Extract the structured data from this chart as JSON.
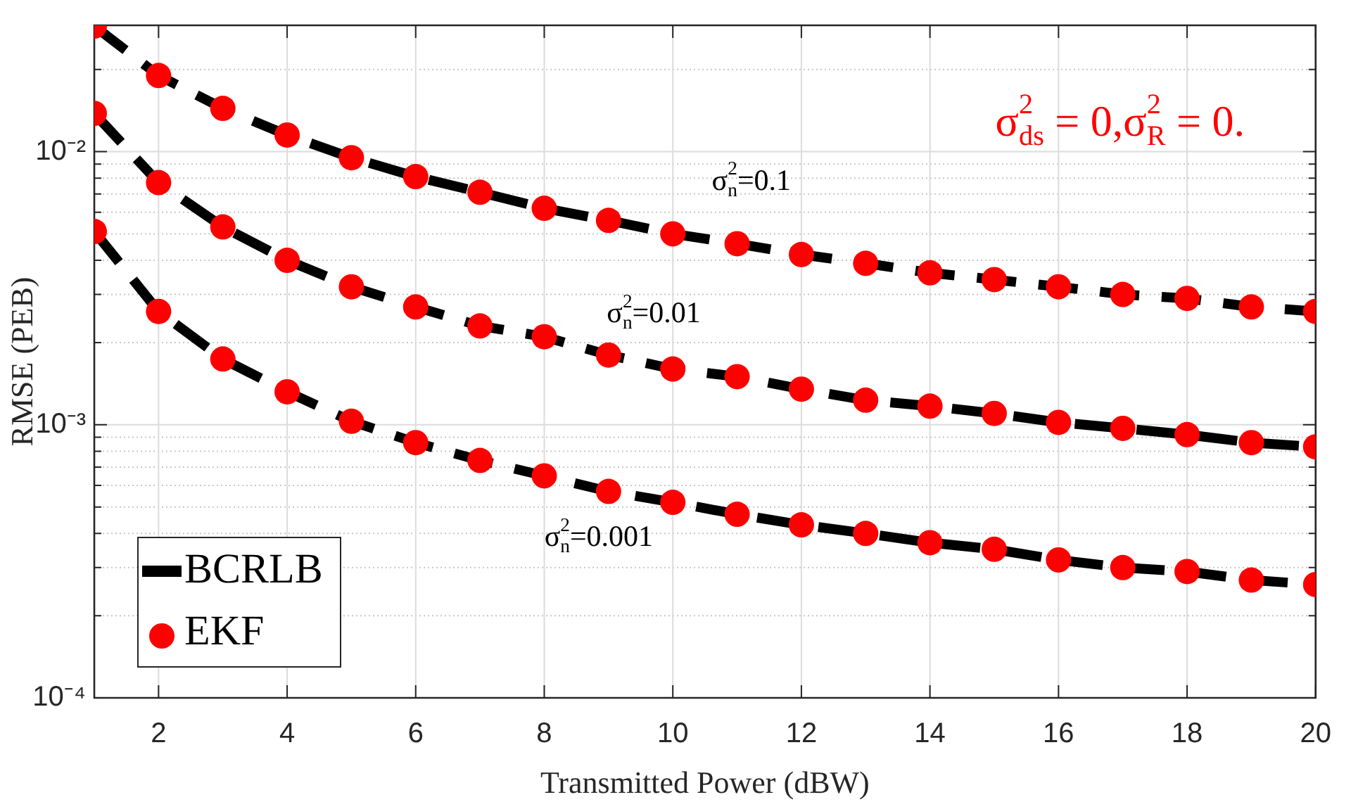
{
  "chart_data": {
    "type": "line",
    "xlabel": "Transmitted Power (dBW)",
    "ylabel": "RMSE (PEB)",
    "x": [
      1,
      2,
      3,
      4,
      5,
      6,
      7,
      8,
      9,
      10,
      11,
      12,
      13,
      14,
      15,
      16,
      17,
      18,
      19,
      20
    ],
    "xlim": [
      1,
      20
    ],
    "xticks": [
      2,
      4,
      6,
      8,
      10,
      12,
      14,
      16,
      18,
      20
    ],
    "log": "y",
    "ylim": [
      0.0001,
      0.029
    ],
    "yticks": [
      {
        "value": 0.0001,
        "label": "10⁻⁴"
      },
      {
        "value": 0.0002,
        "label": null
      },
      {
        "value": 0.0003,
        "label": null
      },
      {
        "value": 0.0004,
        "label": null
      },
      {
        "value": 0.0005,
        "label": null
      },
      {
        "value": 0.0006,
        "label": null
      },
      {
        "value": 0.0007,
        "label": null
      },
      {
        "value": 0.0008,
        "label": null
      },
      {
        "value": 0.0009,
        "label": null
      },
      {
        "value": 0.001,
        "label": "10⁻³"
      },
      {
        "value": 0.002,
        "label": null
      },
      {
        "value": 0.003,
        "label": null
      },
      {
        "value": 0.004,
        "label": null
      },
      {
        "value": 0.005,
        "label": null
      },
      {
        "value": 0.006,
        "label": null
      },
      {
        "value": 0.007,
        "label": null
      },
      {
        "value": 0.008,
        "label": null
      },
      {
        "value": 0.009,
        "label": null
      },
      {
        "value": 0.01,
        "label": "10⁻²"
      },
      {
        "value": 0.02,
        "label": null
      }
    ],
    "grid": true,
    "legend": "bottom left",
    "series": [
      {
        "name": "BCRLB",
        "color": "#000000",
        "line_style": "dashed",
        "marker": "none",
        "values": [
          0.0288,
          0.019,
          0.0144,
          0.0115,
          0.0095,
          0.0081,
          0.0071,
          0.0062,
          0.0056,
          0.005,
          0.0046,
          0.0042,
          0.0039,
          0.0036,
          0.0034,
          0.0032,
          0.003,
          0.0029,
          0.0027,
          0.0026
        ]
      },
      {
        "color": "#000000",
        "line_style": "dashed",
        "marker": "none",
        "values": [
          0.0138,
          0.0077,
          0.0053,
          0.004,
          0.0032,
          0.0027,
          0.0023,
          0.0021,
          0.0018,
          0.0016,
          0.0015,
          0.00135,
          0.00123,
          0.00117,
          0.0011,
          0.00102,
          0.00097,
          0.00092,
          0.00086,
          0.00083
        ]
      },
      {
        "color": "#000000",
        "line_style": "dashed",
        "marker": "none",
        "values": [
          0.0051,
          0.0026,
          0.00174,
          0.00132,
          0.00103,
          0.00086,
          0.00074,
          0.00065,
          0.00057,
          0.00052,
          0.00047,
          0.00043,
          0.0004,
          0.00037,
          0.00035,
          0.00032,
          0.0003,
          0.00029,
          0.00027,
          0.00026
        ]
      },
      {
        "name": "EKF",
        "type": "scatter",
        "color": "#ff0000",
        "marker": "circle",
        "values": [
          0.0288,
          0.019,
          0.0144,
          0.0115,
          0.0095,
          0.0081,
          0.0071,
          0.0062,
          0.0056,
          0.005,
          0.0046,
          0.0042,
          0.0039,
          0.0036,
          0.0034,
          0.0032,
          0.003,
          0.0029,
          0.0027,
          0.0026
        ]
      },
      {
        "type": "scatter",
        "color": "#ff0000",
        "marker": "circle",
        "values": [
          0.0138,
          0.0077,
          0.0053,
          0.004,
          0.0032,
          0.0027,
          0.0023,
          0.0021,
          0.0018,
          0.0016,
          0.0015,
          0.00135,
          0.00123,
          0.00117,
          0.0011,
          0.00102,
          0.00097,
          0.00092,
          0.00086,
          0.00083
        ]
      },
      {
        "type": "scatter",
        "color": "#ff0000",
        "marker": "circle",
        "values": [
          0.0051,
          0.0026,
          0.00174,
          0.00132,
          0.00103,
          0.00086,
          0.00074,
          0.00065,
          0.00057,
          0.00052,
          0.00047,
          0.00043,
          0.0004,
          0.00037,
          0.00035,
          0.00032,
          0.0003,
          0.00029,
          0.00027,
          0.00026
        ]
      }
    ],
    "annotations": [
      "σ$_{n}$$^{2}$=0.1",
      "σ$_{n}$$^{2}$=0.01",
      "σ$_{n}$$^{2}$=0.001",
      "σ$_{ds}$$^{2}$ = 0,σ$_{R}$$^{2}$ = 0."
    ]
  }
}
